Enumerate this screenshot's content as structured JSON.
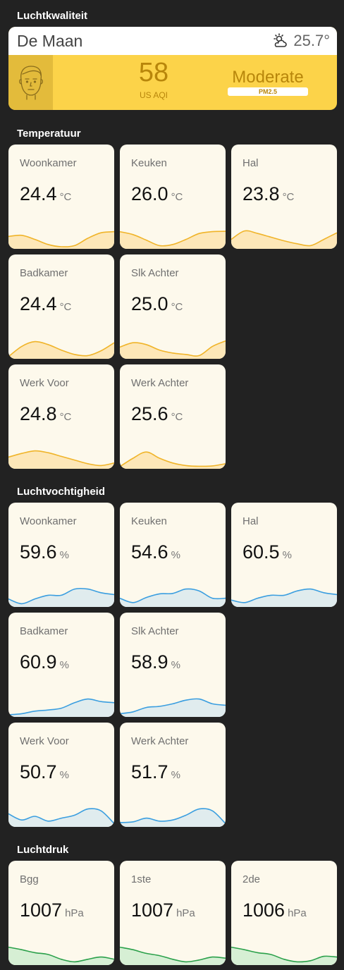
{
  "sections": {
    "air_quality": "Luchtkwaliteit",
    "temperature": "Temperatuur",
    "humidity": "Luchtvochtigheid",
    "pressure": "Luchtdruk"
  },
  "aqi": {
    "location": "De Maan",
    "weather_icon": "partly-cloudy-sun-icon",
    "outdoor_temp": "25.7°",
    "value": "58",
    "unit": "US AQI",
    "status": "Moderate",
    "pollutant": "PM2.5",
    "face_icon": "neutral-face-icon",
    "colors": {
      "card": "#fcd349",
      "face_bg": "#e3bb3b",
      "text": "#b8860b"
    }
  },
  "temperature": [
    {
      "name": "Woonkamer",
      "value": "24.4",
      "unit": "°C",
      "trend": [
        0.3,
        0.33,
        0.22,
        0.08,
        0.02,
        0.05,
        0.25,
        0.4,
        0.43
      ]
    },
    {
      "name": "Keuken",
      "value": "26.0",
      "unit": "°C",
      "trend": [
        0.43,
        0.35,
        0.2,
        0.05,
        0.08,
        0.22,
        0.38,
        0.43,
        0.44
      ]
    },
    {
      "name": "Hal",
      "value": "23.8",
      "unit": "°C",
      "trend": [
        0.22,
        0.45,
        0.38,
        0.28,
        0.18,
        0.1,
        0.05,
        0.22,
        0.4
      ]
    },
    {
      "name": "Badkamer",
      "value": "24.4",
      "unit": "°C",
      "trend": [
        0.02,
        0.3,
        0.43,
        0.35,
        0.2,
        0.08,
        0.05,
        0.18,
        0.4
      ]
    },
    {
      "name": "Slk Achter",
      "value": "25.0",
      "unit": "°C",
      "trend": [
        0.28,
        0.4,
        0.35,
        0.2,
        0.12,
        0.08,
        0.05,
        0.3,
        0.45
      ]
    },
    {
      "name": "Werk Voor",
      "value": "24.8",
      "unit": "°C",
      "trend": [
        0.28,
        0.38,
        0.45,
        0.4,
        0.3,
        0.2,
        0.1,
        0.05,
        0.12
      ]
    },
    {
      "name": "Werk Achter",
      "value": "25.6",
      "unit": "°C",
      "trend": [
        0.02,
        0.25,
        0.42,
        0.25,
        0.12,
        0.05,
        0.03,
        0.04,
        0.1
      ]
    }
  ],
  "humidity": [
    {
      "name": "Woonkamer",
      "value": "59.6",
      "unit": "%",
      "trend": [
        0.18,
        0.05,
        0.18,
        0.28,
        0.28,
        0.45,
        0.45,
        0.35,
        0.3
      ]
    },
    {
      "name": "Keuken",
      "value": "54.6",
      "unit": "%",
      "trend": [
        0.2,
        0.08,
        0.22,
        0.32,
        0.33,
        0.45,
        0.4,
        0.2,
        0.2
      ]
    },
    {
      "name": "Hal",
      "value": "60.5",
      "unit": "%",
      "trend": [
        0.15,
        0.08,
        0.2,
        0.28,
        0.28,
        0.4,
        0.45,
        0.35,
        0.3
      ]
    },
    {
      "name": "Badkamer",
      "value": "60.9",
      "unit": "%",
      "trend": [
        0.02,
        0.05,
        0.12,
        0.15,
        0.2,
        0.35,
        0.45,
        0.38,
        0.35
      ]
    },
    {
      "name": "Slk Achter",
      "value": "58.9",
      "unit": "%",
      "trend": [
        0.05,
        0.1,
        0.22,
        0.25,
        0.32,
        0.42,
        0.45,
        0.32,
        0.28
      ]
    },
    {
      "name": "Werk Voor",
      "value": "50.7",
      "unit": "%",
      "trend": [
        0.32,
        0.15,
        0.25,
        0.12,
        0.2,
        0.28,
        0.45,
        0.4,
        0.05
      ]
    },
    {
      "name": "Werk Achter",
      "value": "51.7",
      "unit": "%",
      "trend": [
        0.08,
        0.1,
        0.2,
        0.12,
        0.15,
        0.28,
        0.45,
        0.4,
        0.05
      ]
    }
  ],
  "pressure": [
    {
      "name": "Bgg",
      "value": "1007",
      "unit": "hPa",
      "trend": [
        0.45,
        0.38,
        0.3,
        0.25,
        0.12,
        0.05,
        0.12,
        0.18,
        0.12
      ]
    },
    {
      "name": "1ste",
      "value": "1007",
      "unit": "hPa",
      "trend": [
        0.45,
        0.38,
        0.28,
        0.22,
        0.12,
        0.05,
        0.1,
        0.18,
        0.15
      ]
    },
    {
      "name": "2de",
      "value": "1006",
      "unit": "hPa",
      "trend": [
        0.45,
        0.38,
        0.3,
        0.25,
        0.12,
        0.05,
        0.08,
        0.2,
        0.18
      ]
    }
  ],
  "colors": {
    "temperature_line": "#f0b429",
    "temperature_fill": "#fde7b8",
    "humidity_line": "#3a9ee0",
    "humidity_fill": "#e0ecee",
    "pressure_line": "#2aa04a",
    "pressure_fill": "#d6efd4"
  }
}
